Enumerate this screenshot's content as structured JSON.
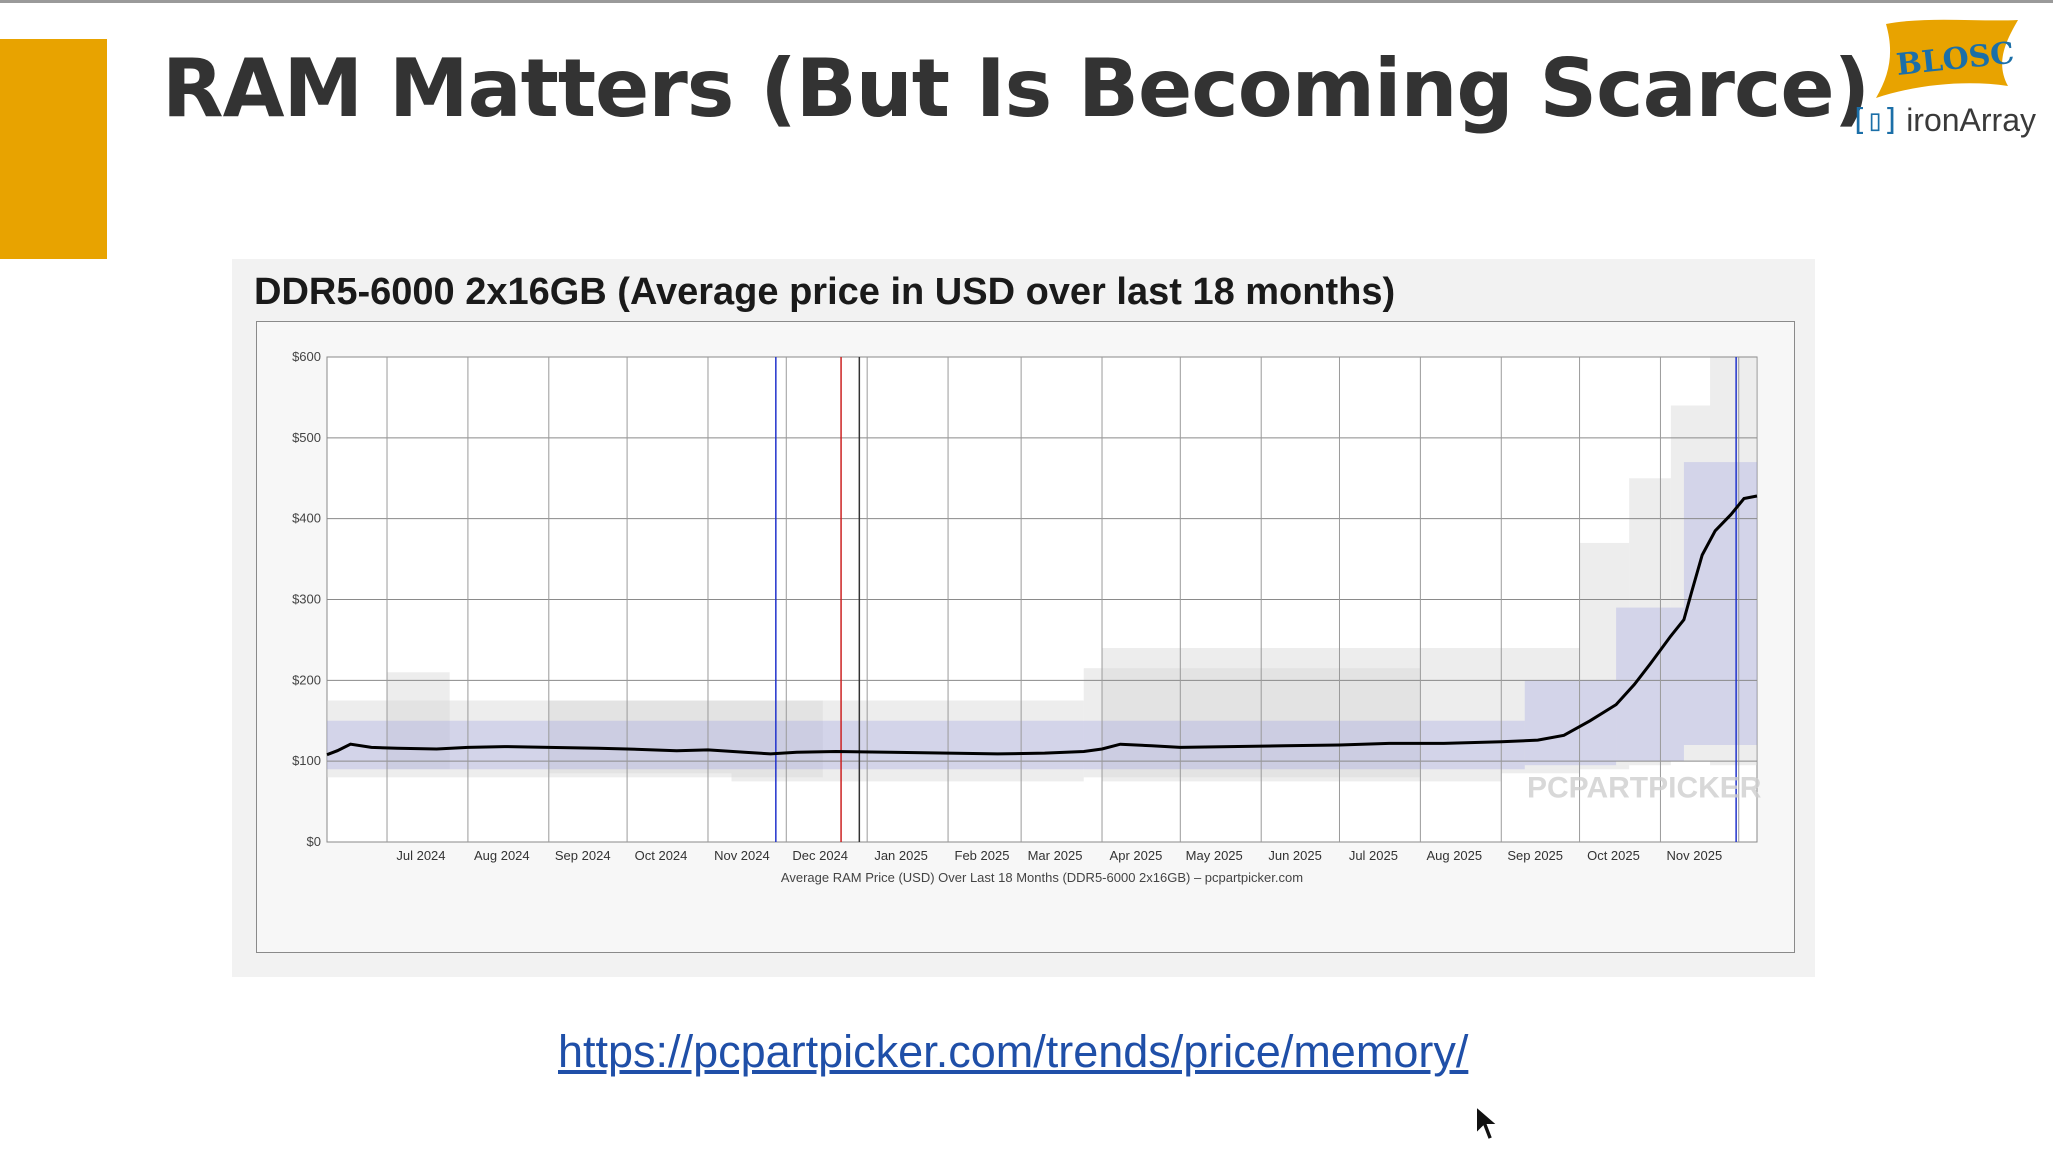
{
  "slide": {
    "title": "RAM Matters (But Is Becoming Scarce)",
    "link": "https://pcpartpicker.com/trends/price/memory/",
    "accent_color": "#e8a300"
  },
  "logos": {
    "blosc_text": "BLOSC",
    "ironarray_bracket": "[▯]",
    "ironarray_text": "ironArray"
  },
  "chart_panel": {
    "title": "DDR5-6000 2x16GB (Average price in USD over last 18 months)"
  },
  "chart_data": {
    "type": "line",
    "title": "DDR5-6000 2x16GB (Average price in USD over last 18 months)",
    "xlabel": "Average RAM Price (USD) Over Last 18 Months (DDR5-6000 2x16GB) – pcpartpicker.com",
    "ylabel": "",
    "ylim": [
      0,
      600
    ],
    "y_ticks": [
      "$0",
      "$100",
      "$200",
      "$300",
      "$400",
      "$500",
      "$600"
    ],
    "y_tick_values": [
      0,
      100,
      200,
      300,
      400,
      500,
      600
    ],
    "x_tick_labels": [
      "Jul 2024",
      "Aug 2024",
      "Sep 2024",
      "Oct 2024",
      "Nov 2024",
      "Dec 2024",
      "Jan 2025",
      "Feb 2025",
      "Mar 2025",
      "Apr 2025",
      "May 2025",
      "Jun 2025",
      "Jul 2025",
      "Aug 2025",
      "Sep 2025",
      "Oct 2025",
      "Nov 2025"
    ],
    "x_range": [
      "2024-06-08",
      "2025-12-08"
    ],
    "grid": true,
    "watermark": "PCPARTPICKER",
    "series": [
      {
        "color": "#000000",
        "points": [
          [
            "2024-06-08",
            108
          ],
          [
            "2024-06-12",
            113
          ],
          [
            "2024-06-17",
            121
          ],
          [
            "2024-06-25",
            117
          ],
          [
            "2024-07-05",
            116
          ],
          [
            "2024-07-20",
            115
          ],
          [
            "2024-08-01",
            117
          ],
          [
            "2024-08-15",
            118
          ],
          [
            "2024-09-01",
            117
          ],
          [
            "2024-09-20",
            116
          ],
          [
            "2024-10-01",
            115
          ],
          [
            "2024-10-20",
            113
          ],
          [
            "2024-11-01",
            114
          ],
          [
            "2024-11-15",
            111
          ],
          [
            "2024-11-25",
            109
          ],
          [
            "2024-12-05",
            111
          ],
          [
            "2024-12-20",
            112
          ],
          [
            "2025-01-10",
            111
          ],
          [
            "2025-02-01",
            110
          ],
          [
            "2025-02-20",
            109
          ],
          [
            "2025-03-10",
            110
          ],
          [
            "2025-03-25",
            112
          ],
          [
            "2025-04-01",
            115
          ],
          [
            "2025-04-08",
            121
          ],
          [
            "2025-04-20",
            119
          ],
          [
            "2025-05-01",
            117
          ],
          [
            "2025-05-20",
            118
          ],
          [
            "2025-06-10",
            119
          ],
          [
            "2025-07-01",
            120
          ],
          [
            "2025-07-20",
            122
          ],
          [
            "2025-08-10",
            122
          ],
          [
            "2025-09-01",
            124
          ],
          [
            "2025-09-15",
            126
          ],
          [
            "2025-09-25",
            132
          ],
          [
            "2025-10-05",
            150
          ],
          [
            "2025-10-15",
            170
          ],
          [
            "2025-10-22",
            195
          ],
          [
            "2025-10-28",
            220
          ],
          [
            "2025-11-05",
            255
          ],
          [
            "2025-11-10",
            275
          ],
          [
            "2025-11-13",
            310
          ],
          [
            "2025-11-17",
            355
          ],
          [
            "2025-11-22",
            385
          ],
          [
            "2025-11-28",
            405
          ],
          [
            "2025-12-03",
            425
          ],
          [
            "2025-12-08",
            428
          ]
        ]
      }
    ],
    "vertical_markers": [
      {
        "date": "2024-11-27",
        "color": "#2233cc"
      },
      {
        "date": "2024-12-22",
        "color": "#cc2222"
      },
      {
        "date": "2024-12-29",
        "color": "#333333"
      },
      {
        "date": "2025-11-30",
        "color": "#2233cc"
      }
    ]
  }
}
